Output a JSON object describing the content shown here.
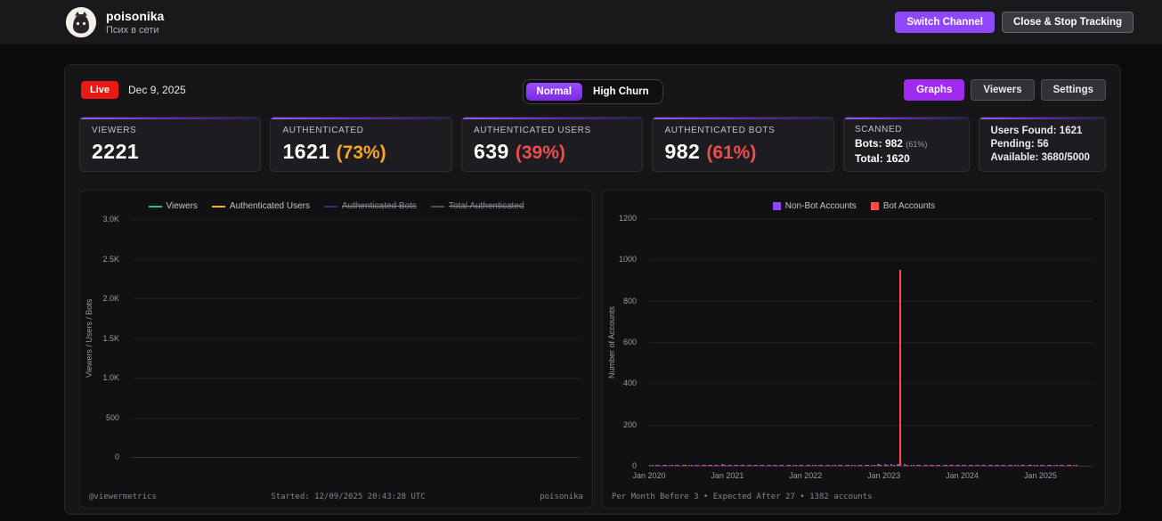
{
  "colors": {
    "accent_purple": "#9147ff",
    "live_red": "#e91916",
    "pct_orange": "#f5a623",
    "pct_red": "#ef4c4c",
    "bot_red": "#ff4b4b"
  },
  "header": {
    "channel_name": "poisonika",
    "channel_status": "Псих в сети",
    "switch_channel_label": "Switch Channel",
    "close_stop_label": "Close & Stop Tracking"
  },
  "toolbar": {
    "live_label": "Live",
    "date": "Dec 9, 2025",
    "mode_normal": "Normal",
    "mode_high_churn": "High Churn",
    "graphs_label": "Graphs",
    "viewers_label": "Viewers",
    "settings_label": "Settings"
  },
  "stats": {
    "viewers": {
      "label": "VIEWERS",
      "value": "2221"
    },
    "authenticated": {
      "label": "AUTHENTICATED",
      "value": "1621",
      "pct": "(73%)"
    },
    "auth_users": {
      "label": "AUTHENTICATED USERS",
      "value": "639",
      "pct": "(39%)"
    },
    "auth_bots": {
      "label": "AUTHENTICATED BOTS",
      "value": "982",
      "pct": "(61%)"
    },
    "scanned": {
      "label": "SCANNED",
      "bots_label": "Bots:",
      "bots_value": "982",
      "bots_pct": "(61%)",
      "total_label": "Total:",
      "total_value": "1620"
    },
    "summary": {
      "users_found": "Users Found: 1621",
      "pending": "Pending: 56",
      "available": "Available: 3680/5000"
    }
  },
  "left_chart": {
    "footer_left": "@viewermetrics",
    "footer_center": "Started: 12/09/2025 20:43:28 UTC",
    "footer_right": "poisonika"
  },
  "right_chart": {
    "footer": "Per Month Before 3 • Expected After 27 • 1382 accounts"
  },
  "chart_data": [
    {
      "type": "line",
      "title": "",
      "ylabel": "Viewers / Users / Bots",
      "yticks": [
        "3.0K",
        "2.5K",
        "2.0K",
        "1.5K",
        "1.0K",
        "500",
        "0"
      ],
      "ylim": [
        0,
        3000
      ],
      "grid": true,
      "legend_position": "top",
      "series": [
        {
          "name": "Viewers",
          "color": "#21c68a",
          "visible": true,
          "values": []
        },
        {
          "name": "Authenticated Users",
          "color": "#f1b31c",
          "visible": true,
          "values": []
        },
        {
          "name": "Authenticated Bots",
          "color": "#9147ff",
          "visible": false,
          "values": []
        },
        {
          "name": "Total Authenticated",
          "color": "#9e9ea7",
          "visible": false,
          "values": []
        }
      ]
    },
    {
      "type": "bar",
      "title": "",
      "ylabel": "Number of Accounts",
      "ylim": [
        0,
        1200
      ],
      "yticks": [
        "1200",
        "1000",
        "800",
        "600",
        "400",
        "200",
        "0"
      ],
      "xticks": [
        "Jan 2020",
        "Jan 2021",
        "Jan 2022",
        "Jan 2023",
        "Jan 2024",
        "Jan 2025"
      ],
      "x_months_per_tick": 12,
      "x_start": "Jan 2020",
      "x_step": "month",
      "grid": true,
      "legend_position": "top",
      "series": [
        {
          "name": "Non-Bot Accounts",
          "color": "#9147ff",
          "visible": true,
          "values": [
            6,
            4,
            3,
            2,
            3,
            4,
            5,
            3,
            2,
            4,
            6,
            7,
            5,
            4,
            3,
            2,
            4,
            2,
            3,
            3,
            5,
            4,
            3,
            5,
            4,
            3,
            5,
            6,
            5,
            4,
            3,
            3,
            4,
            5,
            6,
            8,
            9,
            7,
            10,
            8,
            6,
            4,
            3,
            5,
            4,
            3,
            3,
            4,
            3,
            3,
            4,
            5,
            3,
            3,
            2,
            4,
            4,
            3,
            2,
            3,
            5,
            4,
            3,
            5,
            3,
            4
          ]
        },
        {
          "name": "Bot Accounts",
          "color": "#ff4b4b",
          "visible": true,
          "values": [
            3,
            2,
            1,
            1,
            1,
            2,
            2,
            1,
            1,
            2,
            3,
            4,
            3,
            2,
            1,
            1,
            2,
            1,
            1,
            2,
            2,
            2,
            1,
            3,
            2,
            2,
            2,
            3,
            2,
            2,
            1,
            1,
            2,
            2,
            3,
            4,
            5,
            3,
            950,
            4,
            3,
            2,
            1,
            2,
            2,
            1,
            1,
            2,
            2,
            1,
            2,
            2,
            1,
            1,
            1,
            2,
            2,
            1,
            1,
            2,
            3,
            2,
            2,
            3,
            1,
            2
          ]
        }
      ]
    }
  ]
}
